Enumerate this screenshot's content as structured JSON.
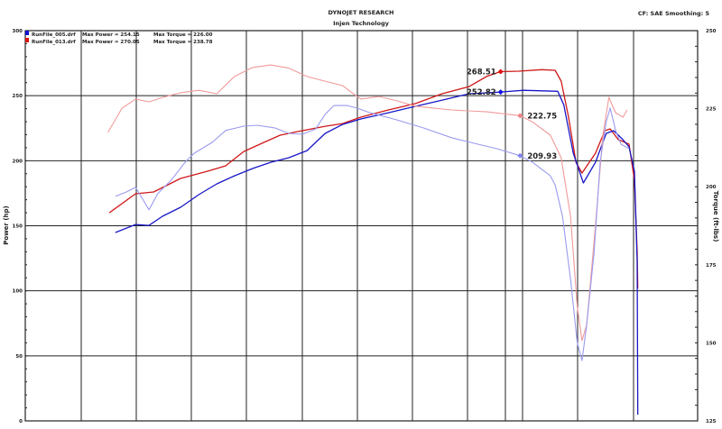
{
  "header": {
    "title": "DYNOJET RESEARCH",
    "subtitle": "Injen Technology",
    "settings": "CF: SAE  Smoothing: 5"
  },
  "legend": [
    {
      "file": "RunFile_005.drf",
      "power": "Max Power = 254.15",
      "torque": "Max Torque = 226.00",
      "color": "#1010d0"
    },
    {
      "file": "RunFile_013.drf",
      "power": "Max Power = 270.05",
      "torque": "Max Torque = 238.78",
      "color": "#e01010"
    }
  ],
  "chart_data": {
    "type": "line",
    "title": "DYNOJET RESEARCH",
    "ylabel": "Power (hp)",
    "y2label": "Torque (ft-lbs)",
    "xlabel": "",
    "xlim": [
      0,
      100
    ],
    "ylim": [
      0,
      300
    ],
    "y2lim": [
      125,
      250
    ],
    "yticks": [
      "0",
      "50",
      "100",
      "150",
      "200",
      "250",
      "300"
    ],
    "y2ticks": [
      "125",
      "150",
      "175",
      "200",
      "225",
      "250"
    ],
    "grid": true,
    "legend_position": "top-left",
    "series": [
      {
        "name": "RunFile_013.drf",
        "kind": "power",
        "axis": "left",
        "color": "#d01818",
        "points": [
          [
            12.5,
            160.0
          ],
          [
            16.4,
            174.6
          ],
          [
            19.1,
            176.0
          ],
          [
            23.1,
            186.4
          ],
          [
            27.1,
            191.9
          ],
          [
            29.8,
            196.1
          ],
          [
            32.5,
            207.1
          ],
          [
            35.2,
            213.4
          ],
          [
            37.9,
            219.6
          ],
          [
            40.5,
            222.4
          ],
          [
            44.6,
            226.5
          ],
          [
            47.2,
            228.6
          ],
          [
            49.9,
            233.5
          ],
          [
            54.0,
            239.0
          ],
          [
            58.0,
            243.9
          ],
          [
            62.0,
            251.5
          ],
          [
            66.0,
            257.0
          ],
          [
            68.7,
            265.0
          ],
          [
            70.7,
            268.5
          ],
          [
            73.4,
            268.8
          ],
          [
            76.8,
            270.0
          ],
          [
            78.8,
            269.5
          ],
          [
            79.7,
            261.2
          ],
          [
            80.8,
            233.5
          ],
          [
            81.9,
            198.8
          ],
          [
            82.8,
            190.5
          ],
          [
            84.8,
            205.8
          ],
          [
            86.2,
            223.1
          ],
          [
            87.0,
            224.5
          ],
          [
            88.2,
            216.2
          ],
          [
            88.9,
            214.8
          ],
          [
            89.8,
            212.7
          ],
          [
            90.6,
            185.0
          ],
          [
            91.0,
            129.6
          ],
          [
            91.1,
            101.8
          ]
        ]
      },
      {
        "name": "RunFile_005.drf",
        "kind": "power",
        "axis": "left",
        "color": "#1818c8",
        "points": [
          [
            13.4,
            144.8
          ],
          [
            16.4,
            151.0
          ],
          [
            18.4,
            150.3
          ],
          [
            20.4,
            157.3
          ],
          [
            23.1,
            164.2
          ],
          [
            25.8,
            173.9
          ],
          [
            28.5,
            182.2
          ],
          [
            31.1,
            188.4
          ],
          [
            33.8,
            194.0
          ],
          [
            36.5,
            198.8
          ],
          [
            39.2,
            202.3
          ],
          [
            41.9,
            207.8
          ],
          [
            44.6,
            221.0
          ],
          [
            47.2,
            227.9
          ],
          [
            49.9,
            232.1
          ],
          [
            54.0,
            236.9
          ],
          [
            58.0,
            241.8
          ],
          [
            62.0,
            246.6
          ],
          [
            66.0,
            251.5
          ],
          [
            70.7,
            252.8
          ],
          [
            74.1,
            254.1
          ],
          [
            79.2,
            253.4
          ],
          [
            80.1,
            243.0
          ],
          [
            81.5,
            205.8
          ],
          [
            83.0,
            182.9
          ],
          [
            84.8,
            198.8
          ],
          [
            86.4,
            221.0
          ],
          [
            87.5,
            223.1
          ],
          [
            88.9,
            216.2
          ],
          [
            89.8,
            210.6
          ],
          [
            90.6,
            191.9
          ],
          [
            91.0,
            122.6
          ],
          [
            91.1,
            4.8
          ]
        ]
      },
      {
        "name": "RunFile_013.drf",
        "kind": "torque",
        "axis": "right",
        "color": "#f09a9a",
        "points": [
          [
            12.3,
            217.4
          ],
          [
            14.4,
            225.2
          ],
          [
            16.4,
            228.1
          ],
          [
            18.4,
            227.2
          ],
          [
            20.4,
            228.6
          ],
          [
            23.1,
            230.1
          ],
          [
            25.8,
            230.9
          ],
          [
            28.5,
            229.8
          ],
          [
            31.1,
            235.3
          ],
          [
            33.8,
            238.2
          ],
          [
            36.5,
            239.0
          ],
          [
            39.2,
            238.0
          ],
          [
            41.9,
            235.3
          ],
          [
            44.6,
            233.8
          ],
          [
            47.2,
            232.4
          ],
          [
            48.6,
            230.1
          ],
          [
            49.9,
            228.1
          ],
          [
            52.6,
            228.9
          ],
          [
            55.3,
            227.5
          ],
          [
            58.0,
            225.8
          ],
          [
            60.7,
            225.2
          ],
          [
            63.4,
            224.6
          ],
          [
            66.0,
            224.3
          ],
          [
            68.7,
            224.0
          ],
          [
            73.6,
            222.75
          ],
          [
            75.4,
            220.8
          ],
          [
            78.1,
            216.5
          ],
          [
            79.7,
            209.3
          ],
          [
            81.1,
            190.5
          ],
          [
            82.1,
            161.6
          ],
          [
            82.8,
            150.7
          ],
          [
            83.5,
            155.9
          ],
          [
            84.8,
            187.6
          ],
          [
            85.9,
            216.5
          ],
          [
            86.8,
            228.6
          ],
          [
            87.8,
            223.7
          ],
          [
            88.9,
            222.3
          ],
          [
            89.5,
            224.6
          ]
        ]
      },
      {
        "name": "RunFile_005.drf",
        "kind": "torque",
        "axis": "right",
        "color": "#9a9af0",
        "points": [
          [
            13.4,
            196.9
          ],
          [
            15.0,
            198.3
          ],
          [
            16.4,
            199.8
          ],
          [
            17.4,
            196.3
          ],
          [
            18.4,
            192.6
          ],
          [
            19.7,
            197.8
          ],
          [
            21.7,
            202.1
          ],
          [
            23.8,
            207.9
          ],
          [
            25.1,
            210.7
          ],
          [
            27.8,
            214.2
          ],
          [
            29.8,
            218.0
          ],
          [
            32.5,
            219.4
          ],
          [
            34.5,
            219.7
          ],
          [
            37.2,
            218.8
          ],
          [
            39.2,
            217.1
          ],
          [
            41.2,
            216.8
          ],
          [
            43.2,
            218.5
          ],
          [
            44.6,
            223.2
          ],
          [
            45.9,
            226.0
          ],
          [
            47.9,
            226.0
          ],
          [
            49.3,
            225.2
          ],
          [
            51.3,
            223.7
          ],
          [
            55.3,
            221.4
          ],
          [
            59.3,
            218.8
          ],
          [
            63.4,
            215.7
          ],
          [
            67.4,
            213.6
          ],
          [
            70.1,
            212.2
          ],
          [
            73.6,
            209.93
          ],
          [
            75.4,
            207.9
          ],
          [
            78.1,
            203.5
          ],
          [
            78.8,
            200.6
          ],
          [
            79.9,
            190.5
          ],
          [
            81.1,
            170.3
          ],
          [
            82.1,
            150.1
          ],
          [
            82.8,
            144.3
          ],
          [
            83.5,
            155.9
          ],
          [
            84.6,
            179.0
          ],
          [
            85.5,
            207.9
          ],
          [
            86.4,
            220.8
          ],
          [
            87.0,
            225.2
          ],
          [
            87.8,
            218.0
          ],
          [
            88.6,
            213.6
          ],
          [
            89.8,
            212.2
          ]
        ]
      }
    ],
    "annotations": [
      {
        "text": "268.51",
        "x": 70.7,
        "y": 268.51,
        "axis": "left",
        "color": "#e01010",
        "side": "left"
      },
      {
        "text": "252.82",
        "x": 70.7,
        "y": 252.82,
        "axis": "left",
        "color": "#1010e0",
        "side": "left"
      },
      {
        "text": "222.75",
        "x": 73.6,
        "y": 222.75,
        "axis": "right",
        "color": "#f08080",
        "side": "right"
      },
      {
        "text": "209.93",
        "x": 73.6,
        "y": 209.93,
        "axis": "right",
        "color": "#8080f0",
        "side": "right"
      }
    ]
  }
}
